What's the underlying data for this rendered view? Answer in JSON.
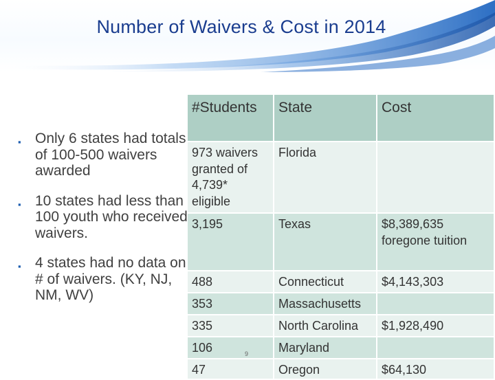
{
  "slide": {
    "title": "Number of Waivers & Cost in 2014",
    "page_number": "9",
    "colors": {
      "title": "#1a3d8f",
      "banner_blue": "#2d6fc4",
      "header_fill": "#aecfc5",
      "row_dark": "#cfe4dd",
      "row_light": "#e9f2ef",
      "bullet_marker": "#1f5fb0"
    }
  },
  "bullets": [
    "Only 6 states had totals of 100-500 waivers awarded",
    "10 states had less than 100 youth who received waivers.",
    "4 states had no data on # of waivers. (KY, NJ, NM, WV)"
  ],
  "table": {
    "headers": [
      "#Students",
      "State",
      "Cost"
    ],
    "rows": [
      [
        "973 waivers granted of 4,739* eligible",
        "Florida",
        ""
      ],
      [
        "3,195",
        "Texas",
        "$8,389,635 foregone tuition"
      ],
      [
        "488",
        "Connecticut",
        "$4,143,303"
      ],
      [
        "353",
        "Massachusetts",
        ""
      ],
      [
        "335",
        "North Carolina",
        "$1,928,490"
      ],
      [
        "106",
        "Maryland",
        ""
      ],
      [
        "47",
        "Oregon",
        "$64,130"
      ]
    ]
  }
}
